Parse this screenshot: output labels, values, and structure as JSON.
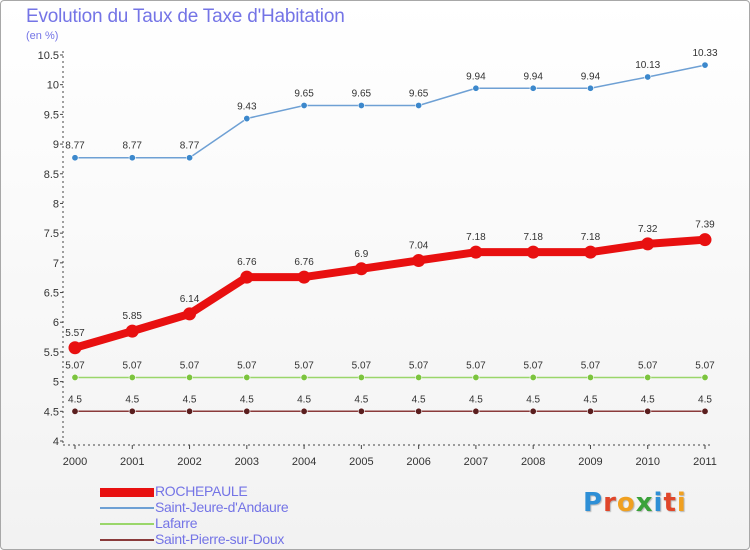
{
  "header": {
    "title": "Evolution du Taux de Taxe d'Habitation",
    "subtitle": "(en %)"
  },
  "logo": {
    "text": "Proxiti",
    "letter_colors": [
      "#2e8fd6",
      "#e0462a",
      "#f0a020",
      "#3aa23a",
      "#2e8fd6",
      "#e0462a",
      "#f0a020"
    ]
  },
  "chart_data": {
    "type": "line",
    "title": "Evolution du Taux de Taxe d'Habitation",
    "subtitle": "(en %)",
    "x": [
      "2000",
      "2001",
      "2002",
      "2003",
      "2004",
      "2005",
      "2006",
      "2007",
      "2008",
      "2009",
      "2010",
      "2011"
    ],
    "ylim": [
      4,
      10.5
    ],
    "y_ticks": [
      "4",
      "4.5",
      "5",
      "5.5",
      "6",
      "6.5",
      "7",
      "7.5",
      "8",
      "8.5",
      "9",
      "9.5",
      "10",
      "10.5"
    ],
    "grid": false,
    "legend_position": "bottom-left",
    "series": [
      {
        "name": "ROCHEPAULE",
        "color": "#e81010",
        "style": "thick",
        "values": [
          5.57,
          5.85,
          6.14,
          6.76,
          6.76,
          6.9,
          7.04,
          7.18,
          7.18,
          7.18,
          7.32,
          7.39
        ],
        "labels": [
          "5.57",
          "5.85",
          "6.14",
          "6.76",
          "6.76",
          "6.9",
          "7.04",
          "7.18",
          "7.18",
          "7.18",
          "7.32",
          "7.39"
        ]
      },
      {
        "name": "Saint-Jeure-d'Andaure",
        "color": "#6ea0d4",
        "marker_color": "#3c88cc",
        "style": "thin",
        "values": [
          8.77,
          8.77,
          8.77,
          9.43,
          9.65,
          9.65,
          9.65,
          9.94,
          9.94,
          9.94,
          10.13,
          10.33
        ],
        "labels": [
          "8.77",
          "8.77",
          "8.77",
          "9.43",
          "9.65",
          "9.65",
          "9.65",
          "9.94",
          "9.94",
          "9.94",
          "10.13",
          "10.33"
        ]
      },
      {
        "name": "Lafarre",
        "color": "#9ad66a",
        "marker_color": "#7cc43e",
        "style": "thin",
        "values": [
          5.07,
          5.07,
          5.07,
          5.07,
          5.07,
          5.07,
          5.07,
          5.07,
          5.07,
          5.07,
          5.07,
          5.07
        ],
        "labels": [
          "5.07",
          "5.07",
          "5.07",
          "5.07",
          "5.07",
          "5.07",
          "5.07",
          "5.07",
          "5.07",
          "5.07",
          "5.07",
          "5.07"
        ]
      },
      {
        "name": "Saint-Pierre-sur-Doux",
        "color": "#8a3a3a",
        "marker_color": "#5a1e1e",
        "style": "thin",
        "values": [
          4.5,
          4.5,
          4.5,
          4.5,
          4.5,
          4.5,
          4.5,
          4.5,
          4.5,
          4.5,
          4.5,
          4.5
        ],
        "labels": [
          "4.5",
          "4.5",
          "4.5",
          "4.5",
          "4.5",
          "4.5",
          "4.5",
          "4.5",
          "4.5",
          "4.5",
          "4.5",
          "4.5"
        ]
      }
    ]
  }
}
